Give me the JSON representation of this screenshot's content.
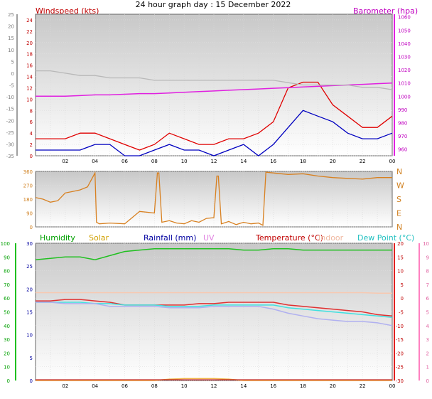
{
  "title": "24 hour graph day : 15 December 2022",
  "x_ticks": [
    "02",
    "04",
    "06",
    "08",
    "10",
    "12",
    "14",
    "16",
    "18",
    "20",
    "22",
    "00"
  ],
  "chart_data": [
    {
      "type": "line",
      "panel": "wind-barometer",
      "x": [
        0,
        1,
        2,
        3,
        4,
        5,
        6,
        7,
        8,
        9,
        10,
        11,
        12,
        13,
        14,
        15,
        16,
        17,
        18,
        19,
        20,
        21,
        22,
        23,
        24
      ],
      "series": [
        {
          "name": "Windspeed (kts)",
          "axis": "left",
          "color": "#e00000",
          "values": [
            3,
            3,
            3,
            4,
            4,
            3,
            2,
            1,
            2,
            4,
            3,
            2,
            2,
            3,
            3,
            4,
            6,
            12,
            13,
            13,
            9,
            7,
            5,
            5,
            7
          ]
        },
        {
          "name": "Windspeed (kts)",
          "axis": "left",
          "color": "#0000c0",
          "values": [
            1,
            1,
            1,
            1,
            2,
            2,
            0,
            0,
            1,
            2,
            1,
            1,
            0,
            1,
            2,
            0,
            2,
            5,
            8,
            7,
            6,
            4,
            3,
            3,
            4
          ]
        },
        {
          "name": "Barometer (hpa)",
          "axis": "right",
          "color": "#e020e0",
          "values": [
            1000,
            1000,
            1000,
            1000.5,
            1001,
            1001,
            1001.5,
            1002,
            1002,
            1002.5,
            1003,
            1003.5,
            1004,
            1004.5,
            1005,
            1005.5,
            1006,
            1006.5,
            1007,
            1007.5,
            1008,
            1008.5,
            1009,
            1009.5,
            1010
          ]
        },
        {
          "name": "",
          "axis": "left-outer",
          "color": "#b8b8b8",
          "values": [
            1,
            1,
            0,
            -1,
            -1,
            -2,
            -2,
            -2,
            -3,
            -3,
            -3,
            -3,
            -3,
            -3,
            -3,
            -3,
            -3,
            -4,
            -5,
            -5,
            -5,
            -5,
            -6,
            -6,
            -7
          ]
        }
      ],
      "left_ticks": [
        0,
        2,
        4,
        6,
        8,
        10,
        12,
        14,
        16,
        18,
        20,
        22,
        24
      ],
      "left_outer_ticks": [
        -35,
        -30,
        -25,
        -20,
        -15,
        -10,
        -5,
        0,
        5,
        10,
        15,
        20,
        25
      ],
      "right_ticks": [
        960,
        970,
        980,
        990,
        1000,
        1010,
        1020,
        1030,
        1040,
        1050,
        1060
      ],
      "ylim_left": [
        0,
        25
      ],
      "ylim_right": [
        955,
        1062
      ]
    },
    {
      "type": "line",
      "panel": "wind-direction",
      "x": [
        0,
        0.5,
        1,
        1.5,
        2,
        2.5,
        3,
        3.5,
        4,
        4.1,
        4.3,
        5,
        6,
        6.5,
        7,
        7.5,
        8,
        8.2,
        8.3,
        8.5,
        9,
        9.5,
        10,
        10.5,
        11,
        11.5,
        12,
        12.2,
        12.3,
        12.5,
        13,
        13.5,
        14,
        14.5,
        15,
        15.3,
        15.5,
        16,
        17,
        18,
        19,
        20,
        21,
        22,
        23,
        24
      ],
      "series": [
        {
          "name": "",
          "color": "#d88020",
          "values": [
            190,
            180,
            160,
            170,
            220,
            230,
            240,
            260,
            350,
            30,
            20,
            25,
            20,
            60,
            100,
            95,
            90,
            350,
            350,
            30,
            40,
            25,
            20,
            40,
            30,
            55,
            60,
            330,
            330,
            20,
            35,
            15,
            30,
            20,
            25,
            10,
            355,
            350,
            340,
            345,
            330,
            320,
            315,
            310,
            320,
            320
          ]
        }
      ],
      "left_ticks": [
        0,
        90,
        180,
        270,
        360
      ],
      "right_labels": [
        "N",
        "W",
        "S",
        "E",
        "N"
      ],
      "ylim": [
        0,
        360
      ]
    },
    {
      "type": "line",
      "panel": "temperature-humidity",
      "x": [
        0,
        1,
        2,
        3,
        4,
        5,
        6,
        7,
        8,
        9,
        10,
        11,
        12,
        13,
        14,
        15,
        16,
        17,
        18,
        19,
        20,
        21,
        22,
        23,
        24
      ],
      "series": [
        {
          "name": "Humidity",
          "axis": "humidity",
          "color": "#20c020",
          "values": [
            88,
            89,
            90,
            90,
            88,
            91,
            94,
            95,
            96,
            96,
            96,
            96,
            96,
            96,
            95,
            95,
            96,
            96,
            95,
            95,
            95,
            95,
            95,
            95,
            95
          ]
        },
        {
          "name": "Temperature (°C)",
          "axis": "temp",
          "color": "#e03030",
          "values": [
            -1,
            -1,
            -0.5,
            -0.5,
            -1,
            -1.5,
            -2.5,
            -2.5,
            -2.5,
            -2.5,
            -2.5,
            -2,
            -2,
            -1.5,
            -1.5,
            -1.5,
            -1.5,
            -2.5,
            -3,
            -3.5,
            -4,
            -4.5,
            -5,
            -6,
            -6.5
          ]
        },
        {
          "name": "Dew Point (°C)",
          "axis": "temp",
          "color": "#40e0e0",
          "values": [
            -1.5,
            -1.5,
            -1.5,
            -1.5,
            -2,
            -2,
            -2.5,
            -2.5,
            -2.5,
            -3,
            -3,
            -3,
            -2.5,
            -2.5,
            -2.5,
            -2.5,
            -2.5,
            -3.5,
            -4,
            -4.5,
            -5,
            -5.5,
            -6,
            -6.5,
            -7
          ]
        },
        {
          "name": "",
          "axis": "temp",
          "color": "#b0b0f0",
          "values": [
            -1.5,
            -1.5,
            -2,
            -2,
            -2,
            -3,
            -3,
            -3,
            -3,
            -3.5,
            -3.5,
            -3.5,
            -3,
            -3,
            -3,
            -3,
            -4,
            -5.5,
            -6.5,
            -7.5,
            -8,
            -8.5,
            -8.5,
            -9,
            -10
          ]
        },
        {
          "name": "Indoor",
          "axis": "temp",
          "color": "#f8c8b0",
          "values": [
            2,
            2,
            2,
            2,
            2,
            2,
            2,
            2,
            2,
            2,
            2,
            2,
            2,
            2,
            2,
            2,
            2,
            2,
            2,
            2,
            2,
            2,
            2,
            1.8,
            1.8
          ]
        },
        {
          "name": "Solar",
          "axis": "temp",
          "color": "#f0b040",
          "values": [
            -30,
            -30,
            -30,
            -30,
            -30,
            -30,
            -30,
            -30,
            -30,
            -29.5,
            -29.3,
            -29.3,
            -29.3,
            -29.5,
            -30,
            -30,
            -30,
            -30,
            -30,
            -30,
            -30,
            -30,
            -30,
            -30,
            -30
          ]
        }
      ],
      "humidity_ticks": [
        0,
        10,
        20,
        30,
        40,
        50,
        60,
        70,
        80,
        90,
        100
      ],
      "rain_ticks": [
        0,
        5,
        10,
        15,
        20,
        25,
        30
      ],
      "temp_ticks": [
        -30,
        -25,
        -20,
        -15,
        -10,
        -5,
        0,
        5,
        10,
        15,
        20
      ],
      "uv_ticks": [
        0,
        1,
        2,
        3,
        4,
        5,
        6,
        7,
        8,
        9,
        10
      ],
      "ylim_temp": [
        -30,
        20
      ]
    }
  ],
  "labels": {
    "windspeed": "Windspeed (kts)",
    "barometer": "Barometer (hpa)",
    "humidity": "Humidity",
    "solar": "Solar",
    "rainfall": "Rainfall (mm)",
    "uv": "UV",
    "temperature": "Temperature (°C)",
    "indoor": "Indoor",
    "dewpoint": "Dew Point (°C)"
  },
  "colors": {
    "windspeed": "#c00000",
    "barometer": "#c000c0",
    "humidity": "#00a000",
    "solar": "#d0a000",
    "rainfall": "#0000a0",
    "uv": "#e080e0",
    "temperature": "#c00000",
    "indoor": "#f0b8a0",
    "dewpoint": "#20c0c0"
  }
}
